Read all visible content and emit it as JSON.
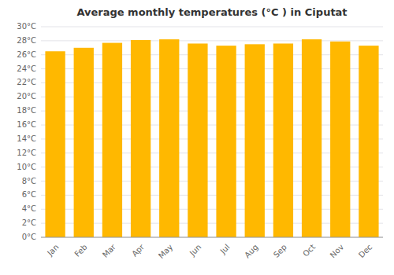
{
  "chart_data": {
    "type": "bar",
    "title": "Average monthly temperatures (°C ) in Ciputat",
    "categories": [
      "Jan",
      "Feb",
      "Mar",
      "Apr",
      "May",
      "Jun",
      "Jul",
      "Aug",
      "Sep",
      "Oct",
      "Nov",
      "Dec"
    ],
    "values": [
      26.5,
      27.0,
      27.7,
      28.1,
      28.2,
      27.6,
      27.3,
      27.5,
      27.6,
      28.2,
      27.9,
      27.3
    ],
    "color": "#FFB800",
    "ylim": [
      0,
      30
    ],
    "yticks": [
      {
        "value": 0,
        "label": "0°C"
      },
      {
        "value": 2,
        "label": "2°C"
      },
      {
        "value": 4,
        "label": "4°C"
      },
      {
        "value": 6,
        "label": "6°C"
      },
      {
        "value": 8,
        "label": "8°C"
      },
      {
        "value": 10,
        "label": "10°C"
      },
      {
        "value": 12,
        "label": "12°C"
      },
      {
        "value": 14,
        "label": "14°C"
      },
      {
        "value": 16,
        "label": "16°C"
      },
      {
        "value": 18,
        "label": "18°C"
      },
      {
        "value": 20,
        "label": "20°C"
      },
      {
        "value": 22,
        "label": "22°C"
      },
      {
        "value": 24,
        "label": "24°C"
      },
      {
        "value": 26,
        "label": "26°C"
      },
      {
        "value": 28,
        "label": "28°C"
      },
      {
        "value": 30,
        "label": "30°C"
      }
    ],
    "grid": true
  }
}
